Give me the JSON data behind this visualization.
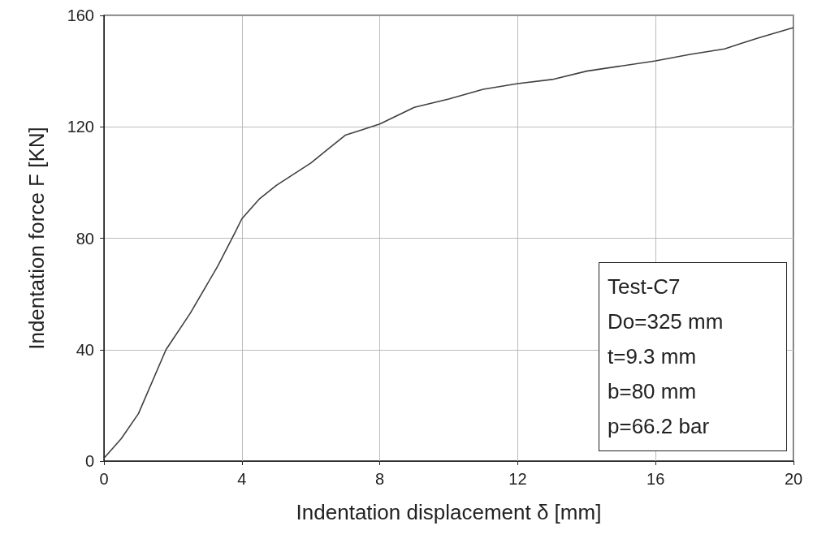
{
  "chart_data": {
    "type": "line",
    "xlabel": "Indentation displacement δ [mm]",
    "ylabel": "Indentation force F [KN]",
    "x": [
      0,
      0.5,
      1,
      1.8,
      2.5,
      3.3,
      3.8,
      4,
      4.5,
      5,
      6,
      6.5,
      7,
      7.5,
      8,
      9,
      10,
      11,
      12,
      13,
      14,
      16,
      17,
      18,
      18.5,
      19,
      20
    ],
    "series": [
      {
        "color": "#404040",
        "values": [
          1,
          8,
          17,
          40,
          53,
          70,
          82,
          87,
          94,
          99,
          107,
          112,
          117,
          119,
          121,
          127,
          130,
          133.5,
          135.5,
          137,
          140,
          143.7,
          146,
          148,
          150,
          152,
          155.6
        ]
      }
    ],
    "xlim": [
      0,
      20
    ],
    "xticks": [
      0,
      4,
      8,
      12,
      16,
      20
    ],
    "ylim": [
      0,
      160
    ],
    "yticks": [
      0,
      40,
      80,
      120,
      160
    ],
    "grid": true,
    "marker": "none",
    "line_style": "solid",
    "annotations": [
      "Test-C7",
      "Do=325 mm",
      "t=9.3 mm",
      "b=80 mm",
      "p=66.2 bar"
    ]
  }
}
